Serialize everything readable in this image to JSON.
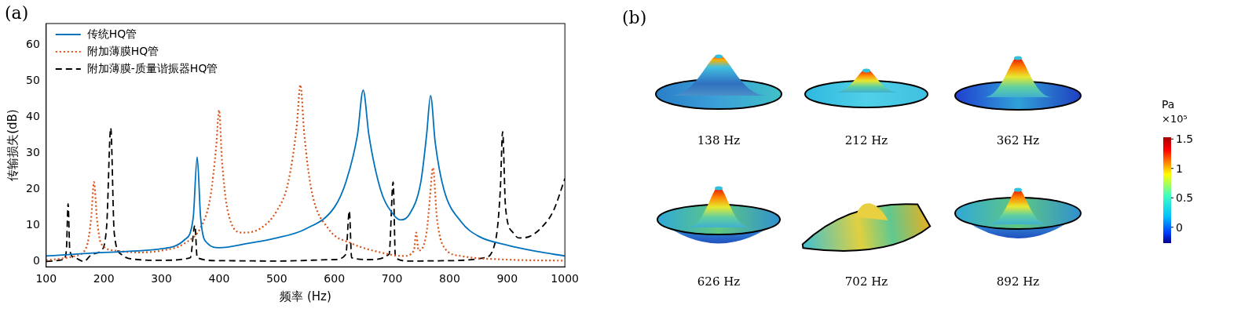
{
  "chart_data": {
    "type": "line",
    "panel": "(a)",
    "x_label": "频率 (Hz)",
    "y_label": "传输损失(dB)",
    "xlim": [
      100,
      1000
    ],
    "xticks": [
      100,
      200,
      300,
      400,
      500,
      600,
      700,
      800,
      900,
      1000
    ],
    "ylim": [
      -1.5,
      66
    ],
    "yticks": [
      0,
      10,
      20,
      30,
      40,
      50,
      60
    ],
    "grid": false,
    "legend": "upper left",
    "series": [
      {
        "name": "传统HQ管",
        "color": "#0072bd",
        "line_style": "solid",
        "x": [
          100,
          200,
          300,
          340,
          355,
          362,
          368,
          380,
          400,
          450,
          500,
          550,
          600,
          620,
          640,
          650,
          660,
          680,
          700,
          715,
          730,
          750,
          760,
          767,
          775,
          790,
          820,
          850,
          900,
          950,
          1000
        ],
        "values": [
          1.5,
          2.5,
          3.5,
          6,
          12,
          29,
          12,
          5,
          3.8,
          5,
          6.5,
          9,
          15,
          22,
          35,
          47.5,
          35,
          20,
          13.5,
          11.5,
          13,
          22,
          35,
          46,
          33,
          20,
          11,
          7,
          4.5,
          2.8,
          1.5
        ]
      },
      {
        "name": "附加薄膜HQ管",
        "color": "#d95319",
        "line_style": "dotted",
        "x": [
          100,
          150,
          170,
          178,
          183,
          188,
          195,
          220,
          260,
          300,
          340,
          370,
          385,
          395,
          400,
          405,
          415,
          440,
          470,
          500,
          520,
          535,
          541,
          548,
          560,
          590,
          630,
          680,
          720,
          738,
          742,
          746,
          760,
          766,
          771,
          778,
          790,
          820,
          900,
          1000
        ],
        "values": [
          0.3,
          1.5,
          4,
          12,
          22,
          12,
          5,
          3,
          2.5,
          3,
          5,
          10,
          18,
          32,
          42,
          28,
          14,
          8,
          9,
          14,
          22,
          38,
          49,
          35,
          20,
          9,
          5,
          2.5,
          1.5,
          3,
          8,
          3,
          8,
          18,
          26,
          12,
          4,
          1.5,
          0.5,
          0.2
        ]
      },
      {
        "name": "附加薄膜-质量谐振器HQ管",
        "color": "#000000",
        "line_style": "dashed",
        "x": [
          100,
          130,
          135,
          138,
          141,
          150,
          165,
          180,
          195,
          205,
          212,
          218,
          230,
          260,
          300,
          350,
          358,
          362,
          400,
          500,
          600,
          620,
          626,
          630,
          660,
          695,
          702,
          706,
          730,
          800,
          860,
          880,
          888,
          892,
          897,
          910,
          920,
          940,
          960,
          980,
          1000
        ],
        "values": [
          0,
          0.5,
          3,
          16,
          3,
          1,
          0,
          2,
          3,
          10,
          37,
          8,
          2,
          0.5,
          0.3,
          1,
          10,
          1,
          0.2,
          0.1,
          0.5,
          2,
          14,
          1,
          0.5,
          2,
          22,
          1,
          0.1,
          0.2,
          1,
          6,
          20,
          36,
          15,
          8,
          6.5,
          7,
          9.5,
          14,
          23
        ]
      }
    ]
  },
  "panel_b": {
    "panel": "(b)",
    "images": [
      {
        "label": "138 Hz"
      },
      {
        "label": "212 Hz"
      },
      {
        "label": "362 Hz"
      },
      {
        "label": "626 Hz"
      },
      {
        "label": "702 Hz"
      },
      {
        "label": "892 Hz"
      }
    ],
    "colorbar": {
      "title": "Pa",
      "scale": "×10⁵",
      "range": [
        -0.27,
        1.53
      ],
      "ticks": [
        0,
        0.5,
        1,
        1.5
      ]
    }
  }
}
